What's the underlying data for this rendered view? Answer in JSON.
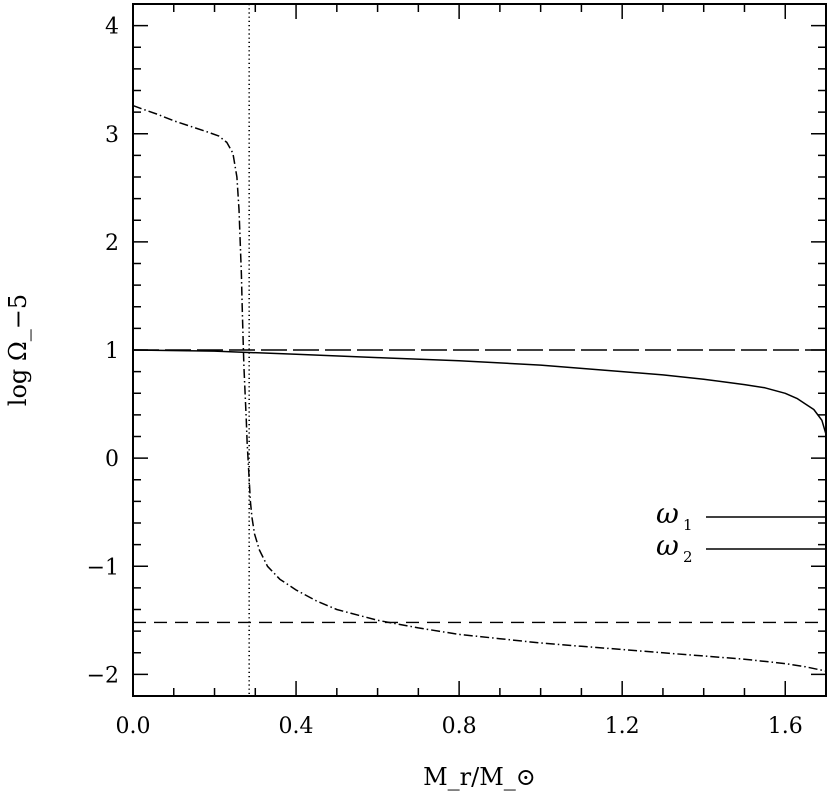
{
  "chart_data": {
    "type": "line",
    "xlabel": "M_r/M_⊙",
    "ylabel": "log Ω_−5",
    "xlim": [
      0.0,
      1.7
    ],
    "ylim": [
      -2.2,
      4.2
    ],
    "xticks": [
      {
        "value": 0.0,
        "label": "0.0"
      },
      {
        "value": 0.4,
        "label": "0.4"
      },
      {
        "value": 0.8,
        "label": "0.8"
      },
      {
        "value": 1.2,
        "label": "1.2"
      },
      {
        "value": 1.6,
        "label": "1.6"
      }
    ],
    "yticks": [
      {
        "value": -2,
        "label": "−2"
      },
      {
        "value": -1,
        "label": "−1"
      },
      {
        "value": 0,
        "label": "0"
      },
      {
        "value": 1,
        "label": "1"
      },
      {
        "value": 2,
        "label": "2"
      },
      {
        "value": 3,
        "label": "3"
      },
      {
        "value": 4,
        "label": "4"
      }
    ],
    "x_minor_step": 0.1,
    "y_minor_step": 0.2,
    "grid": false,
    "vertical_lines": [
      {
        "x": 0.285,
        "style": "dotted"
      }
    ],
    "horizontal_lines": [
      {
        "y": 1.0,
        "style": "long-dash"
      },
      {
        "y": -1.52,
        "style": "dash"
      }
    ],
    "series": [
      {
        "style": "dash-dot",
        "x": [
          0.0,
          0.03,
          0.06,
          0.1,
          0.14,
          0.18,
          0.21,
          0.23,
          0.245,
          0.255,
          0.26,
          0.263,
          0.266,
          0.268,
          0.27,
          0.272,
          0.275,
          0.278,
          0.28,
          0.282,
          0.285,
          0.288,
          0.292,
          0.298,
          0.31,
          0.33,
          0.36,
          0.4,
          0.45,
          0.5,
          0.6,
          0.7,
          0.8,
          0.9,
          1.0,
          1.1,
          1.2,
          1.3,
          1.4,
          1.5,
          1.55,
          1.6,
          1.65,
          1.7
        ],
        "y": [
          3.26,
          3.22,
          3.18,
          3.12,
          3.07,
          3.02,
          2.98,
          2.92,
          2.82,
          2.6,
          2.3,
          2.0,
          1.7,
          1.4,
          1.1,
          0.85,
          0.6,
          0.35,
          0.15,
          0.0,
          -0.2,
          -0.4,
          -0.55,
          -0.7,
          -0.85,
          -1.0,
          -1.12,
          -1.22,
          -1.32,
          -1.4,
          -1.5,
          -1.57,
          -1.63,
          -1.67,
          -1.71,
          -1.74,
          -1.77,
          -1.8,
          -1.83,
          -1.86,
          -1.88,
          -1.9,
          -1.93,
          -1.97
        ]
      },
      {
        "style": "solid",
        "x": [
          0.0,
          0.2,
          0.4,
          0.6,
          0.8,
          1.0,
          1.1,
          1.2,
          1.3,
          1.4,
          1.5,
          1.55,
          1.6,
          1.63,
          1.65,
          1.67,
          1.69,
          1.7
        ],
        "y": [
          1.0,
          0.99,
          0.96,
          0.93,
          0.9,
          0.86,
          0.83,
          0.8,
          0.77,
          0.73,
          0.68,
          0.65,
          0.6,
          0.55,
          0.5,
          0.45,
          0.35,
          0.22
        ]
      }
    ],
    "legend": {
      "placement": "right",
      "entries": [
        {
          "symbol": "ω",
          "subscript": "1",
          "line": "solid"
        },
        {
          "symbol": "ω",
          "subscript": "2",
          "line": "solid"
        }
      ]
    }
  }
}
